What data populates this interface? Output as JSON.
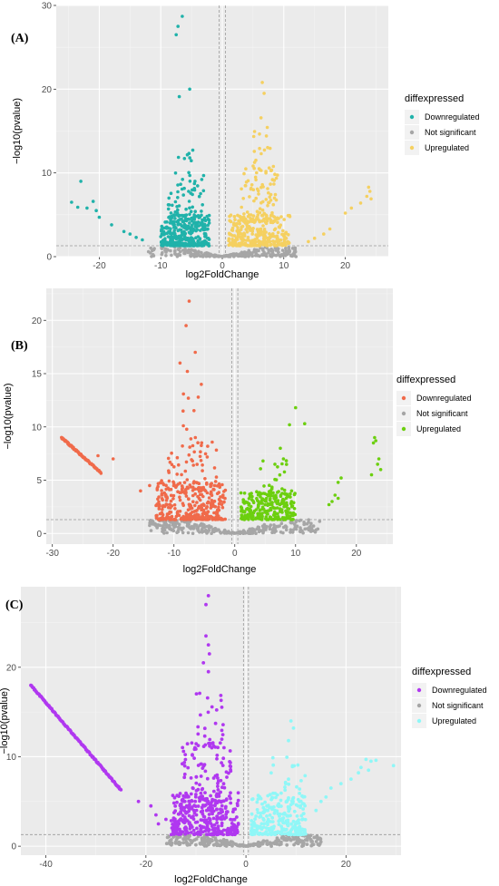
{
  "chart_data": [
    {
      "type": "scatter",
      "panel_label": "(A)",
      "xlabel": "log2FoldChange",
      "ylabel": "−log10(pvalue)",
      "xlim": [
        -27,
        27
      ],
      "ylim": [
        0,
        30
      ],
      "x_ticks": [
        -20,
        -10,
        0,
        10,
        20
      ],
      "y_ticks": [
        0,
        10,
        20,
        30
      ],
      "grid": true,
      "threshold_lines": {
        "vertical": [
          -0.5,
          0.5
        ],
        "horizontal": 1.3
      },
      "legend": {
        "title": "diffexpressed",
        "entries": [
          "Downregulated",
          "Not significant",
          "Upregulated"
        ],
        "position": "right"
      },
      "colors": {
        "Downregulated": "#20b2aa",
        "Not significant": "#a6a6a6",
        "Upregulated": "#f5d060"
      },
      "clusters": {
        "Downregulated": [
          {
            "x": [
              -10,
              -2
            ],
            "y": [
              1.3,
              5
            ],
            "n": 300
          },
          {
            "x": [
              -9,
              -3
            ],
            "y": [
              4,
              10
            ],
            "n": 70
          },
          {
            "x": [
              -8,
              -4
            ],
            "y": [
              9,
              16
            ],
            "n": 10
          }
        ],
        "Upregulated": [
          {
            "x": [
              1,
              11
            ],
            "y": [
              1.3,
              5
            ],
            "n": 300
          },
          {
            "x": [
              3,
              9
            ],
            "y": [
              4,
              11
            ],
            "n": 90
          },
          {
            "x": [
              5,
              8
            ],
            "y": [
              10,
              17
            ],
            "n": 20
          }
        ],
        "Not significant": [
          {
            "x": [
              -12,
              12
            ],
            "y": [
              0,
              1.3
            ],
            "n": 260,
            "v": true
          }
        ]
      },
      "points": {
        "Downregulated": [
          [
            -6.5,
            28.7
          ],
          [
            -7.2,
            27.5
          ],
          [
            -7.5,
            26.5
          ],
          [
            -7,
            19.1
          ],
          [
            -5.3,
            20
          ],
          [
            -24.5,
            6.5
          ],
          [
            -23,
            9
          ],
          [
            -22,
            5.8
          ],
          [
            -21,
            6.6
          ],
          [
            -20.5,
            5.5
          ],
          [
            -20,
            4.7
          ],
          [
            -18,
            3.8
          ],
          [
            -16,
            3
          ],
          [
            -14,
            2.3
          ],
          [
            -13,
            2
          ],
          [
            -15,
            2.7
          ],
          [
            -23.5,
            5.9
          ]
        ],
        "Upregulated": [
          [
            6.5,
            20.8
          ],
          [
            6.8,
            19.5
          ],
          [
            16.5,
            2.7
          ],
          [
            17.5,
            3.3
          ],
          [
            20,
            5.2
          ],
          [
            21,
            5.8
          ],
          [
            22.5,
            6.4
          ],
          [
            23.5,
            7.2
          ],
          [
            24,
            7.8
          ],
          [
            23.8,
            8.3
          ],
          [
            24.2,
            6.9
          ],
          [
            15,
            2.2
          ],
          [
            14,
            1.8
          ]
        ],
        "Not significant": []
      }
    },
    {
      "type": "scatter",
      "panel_label": "(B)",
      "xlabel": "log2FoldChange",
      "ylabel": "−log10(pvalue)",
      "xlim": [
        -31,
        26
      ],
      "ylim": [
        -1,
        23
      ],
      "x_ticks": [
        -30,
        -20,
        -10,
        0,
        10,
        20
      ],
      "y_ticks": [
        0,
        5,
        10,
        15,
        20
      ],
      "grid": true,
      "threshold_lines": {
        "vertical": [
          -0.5,
          0.5
        ],
        "horizontal": 1.3
      },
      "legend": {
        "title": "diffexpressed",
        "entries": [
          "Downregulated",
          "Not significant",
          "Upregulated"
        ],
        "position": "right"
      },
      "colors": {
        "Downregulated": "#f06a4a",
        "Not significant": "#a6a6a6",
        "Upregulated": "#6ccf0f"
      },
      "clusters": {
        "Downregulated": [
          {
            "x": [
              -13,
              -1.5
            ],
            "y": [
              1.3,
              5
            ],
            "n": 320
          },
          {
            "x": [
              -11,
              -3
            ],
            "y": [
              4,
              9
            ],
            "n": 60
          },
          {
            "x": [
              -9,
              -5
            ],
            "y": [
              8,
              14
            ],
            "n": 10
          }
        ],
        "Upregulated": [
          {
            "x": [
              1,
              10
            ],
            "y": [
              1.3,
              4
            ],
            "n": 260
          },
          {
            "x": [
              4,
              10
            ],
            "y": [
              3.5,
              7
            ],
            "n": 25
          }
        ],
        "Not significant": [
          {
            "x": [
              -14,
              14
            ],
            "y": [
              0,
              1.3
            ],
            "n": 280,
            "v": true
          }
        ]
      },
      "points": {
        "Downregulated": [
          [
            -7.5,
            21.8
          ],
          [
            -8,
            19.5
          ],
          [
            -6.5,
            17
          ],
          [
            -9,
            16
          ],
          [
            -7.8,
            15.2
          ],
          [
            -6,
            12.8
          ],
          [
            -5.5,
            14
          ],
          [
            -15.5,
            4
          ],
          [
            -14,
            4.5
          ],
          [
            -20,
            7
          ],
          [
            -22.5,
            7.3
          ]
        ],
        "Upregulated": [
          [
            10,
            11.8
          ],
          [
            9,
            10.2
          ],
          [
            11.5,
            10.3
          ],
          [
            7.5,
            8
          ],
          [
            8,
            7
          ],
          [
            17.5,
            5.2
          ],
          [
            17,
            4.8
          ],
          [
            16.5,
            3.6
          ],
          [
            16,
            3
          ],
          [
            15.5,
            2.7
          ],
          [
            17,
            3.3
          ],
          [
            23,
            9
          ],
          [
            22.8,
            8.5
          ],
          [
            23.2,
            8.7
          ],
          [
            24,
            6
          ],
          [
            23.7,
            7
          ],
          [
            22.5,
            5.5
          ],
          [
            23.5,
            6.5
          ]
        ],
        "Not significant": []
      },
      "lines": {
        "Downregulated": [
          {
            "from": [
              -28.5,
              9.0
            ],
            "to": [
              -22,
              5.7
            ],
            "n": 80
          }
        ]
      }
    },
    {
      "type": "scatter",
      "panel_label": "(C)",
      "xlabel": "log2FoldChange",
      "ylabel": "−log10(pvalue)",
      "xlim": [
        -45,
        31
      ],
      "ylim": [
        -1,
        29
      ],
      "x_ticks": [
        -40,
        -20,
        0,
        20
      ],
      "y_ticks": [
        0,
        10,
        20
      ],
      "grid": true,
      "threshold_lines": {
        "vertical": [
          -0.5,
          0.5
        ],
        "horizontal": 1.3
      },
      "legend": {
        "title": "diffexpressed",
        "entries": [
          "Downregulated",
          "Not significant",
          "Upregulated"
        ],
        "position": "right"
      },
      "colors": {
        "Downregulated": "#b038f0",
        "Not significant": "#a6a6a6",
        "Upregulated": "#8ff7f7"
      },
      "clusters": {
        "Downregulated": [
          {
            "x": [
              -15,
              -1.5
            ],
            "y": [
              1.3,
              6
            ],
            "n": 330
          },
          {
            "x": [
              -13,
              -3
            ],
            "y": [
              5,
              12
            ],
            "n": 110
          },
          {
            "x": [
              -10,
              -4
            ],
            "y": [
              11,
              18
            ],
            "n": 30
          }
        ],
        "Upregulated": [
          {
            "x": [
              1,
              12
            ],
            "y": [
              1.3,
              6
            ],
            "n": 250
          },
          {
            "x": [
              5,
              12
            ],
            "y": [
              5,
              10
            ],
            "n": 25
          }
        ],
        "Not significant": [
          {
            "x": [
              -16,
              15
            ],
            "y": [
              0,
              1.3
            ],
            "n": 260,
            "v": true
          }
        ]
      },
      "points": {
        "Downregulated": [
          [
            -7.5,
            28
          ],
          [
            -8,
            27
          ],
          [
            -8,
            23.5
          ],
          [
            -7.5,
            22.5
          ],
          [
            -7.3,
            21.5
          ],
          [
            -8.5,
            20.5
          ],
          [
            -7.5,
            19.5
          ],
          [
            -21.5,
            5
          ],
          [
            -18,
            3.5
          ],
          [
            -17.5,
            2.5
          ],
          [
            -19,
            4.5
          ],
          [
            -16,
            3
          ]
        ],
        "Upregulated": [
          [
            9,
            14
          ],
          [
            9.5,
            13.2
          ],
          [
            8.5,
            11.8
          ],
          [
            14,
            4
          ],
          [
            15,
            5
          ],
          [
            16,
            5.5
          ],
          [
            17,
            6.5
          ],
          [
            19,
            7
          ],
          [
            21,
            7.5
          ],
          [
            24,
            9.7
          ],
          [
            25,
            9.5
          ],
          [
            26,
            9.6
          ],
          [
            23,
            8.8
          ],
          [
            22.5,
            8.2
          ],
          [
            24.5,
            8.5
          ],
          [
            29.5,
            9
          ]
        ],
        "Not significant": []
      },
      "lines": {
        "Downregulated": [
          {
            "from": [
              -43,
              18.0
            ],
            "to": [
              -25,
              6.3
            ],
            "n": 130
          }
        ]
      }
    }
  ]
}
